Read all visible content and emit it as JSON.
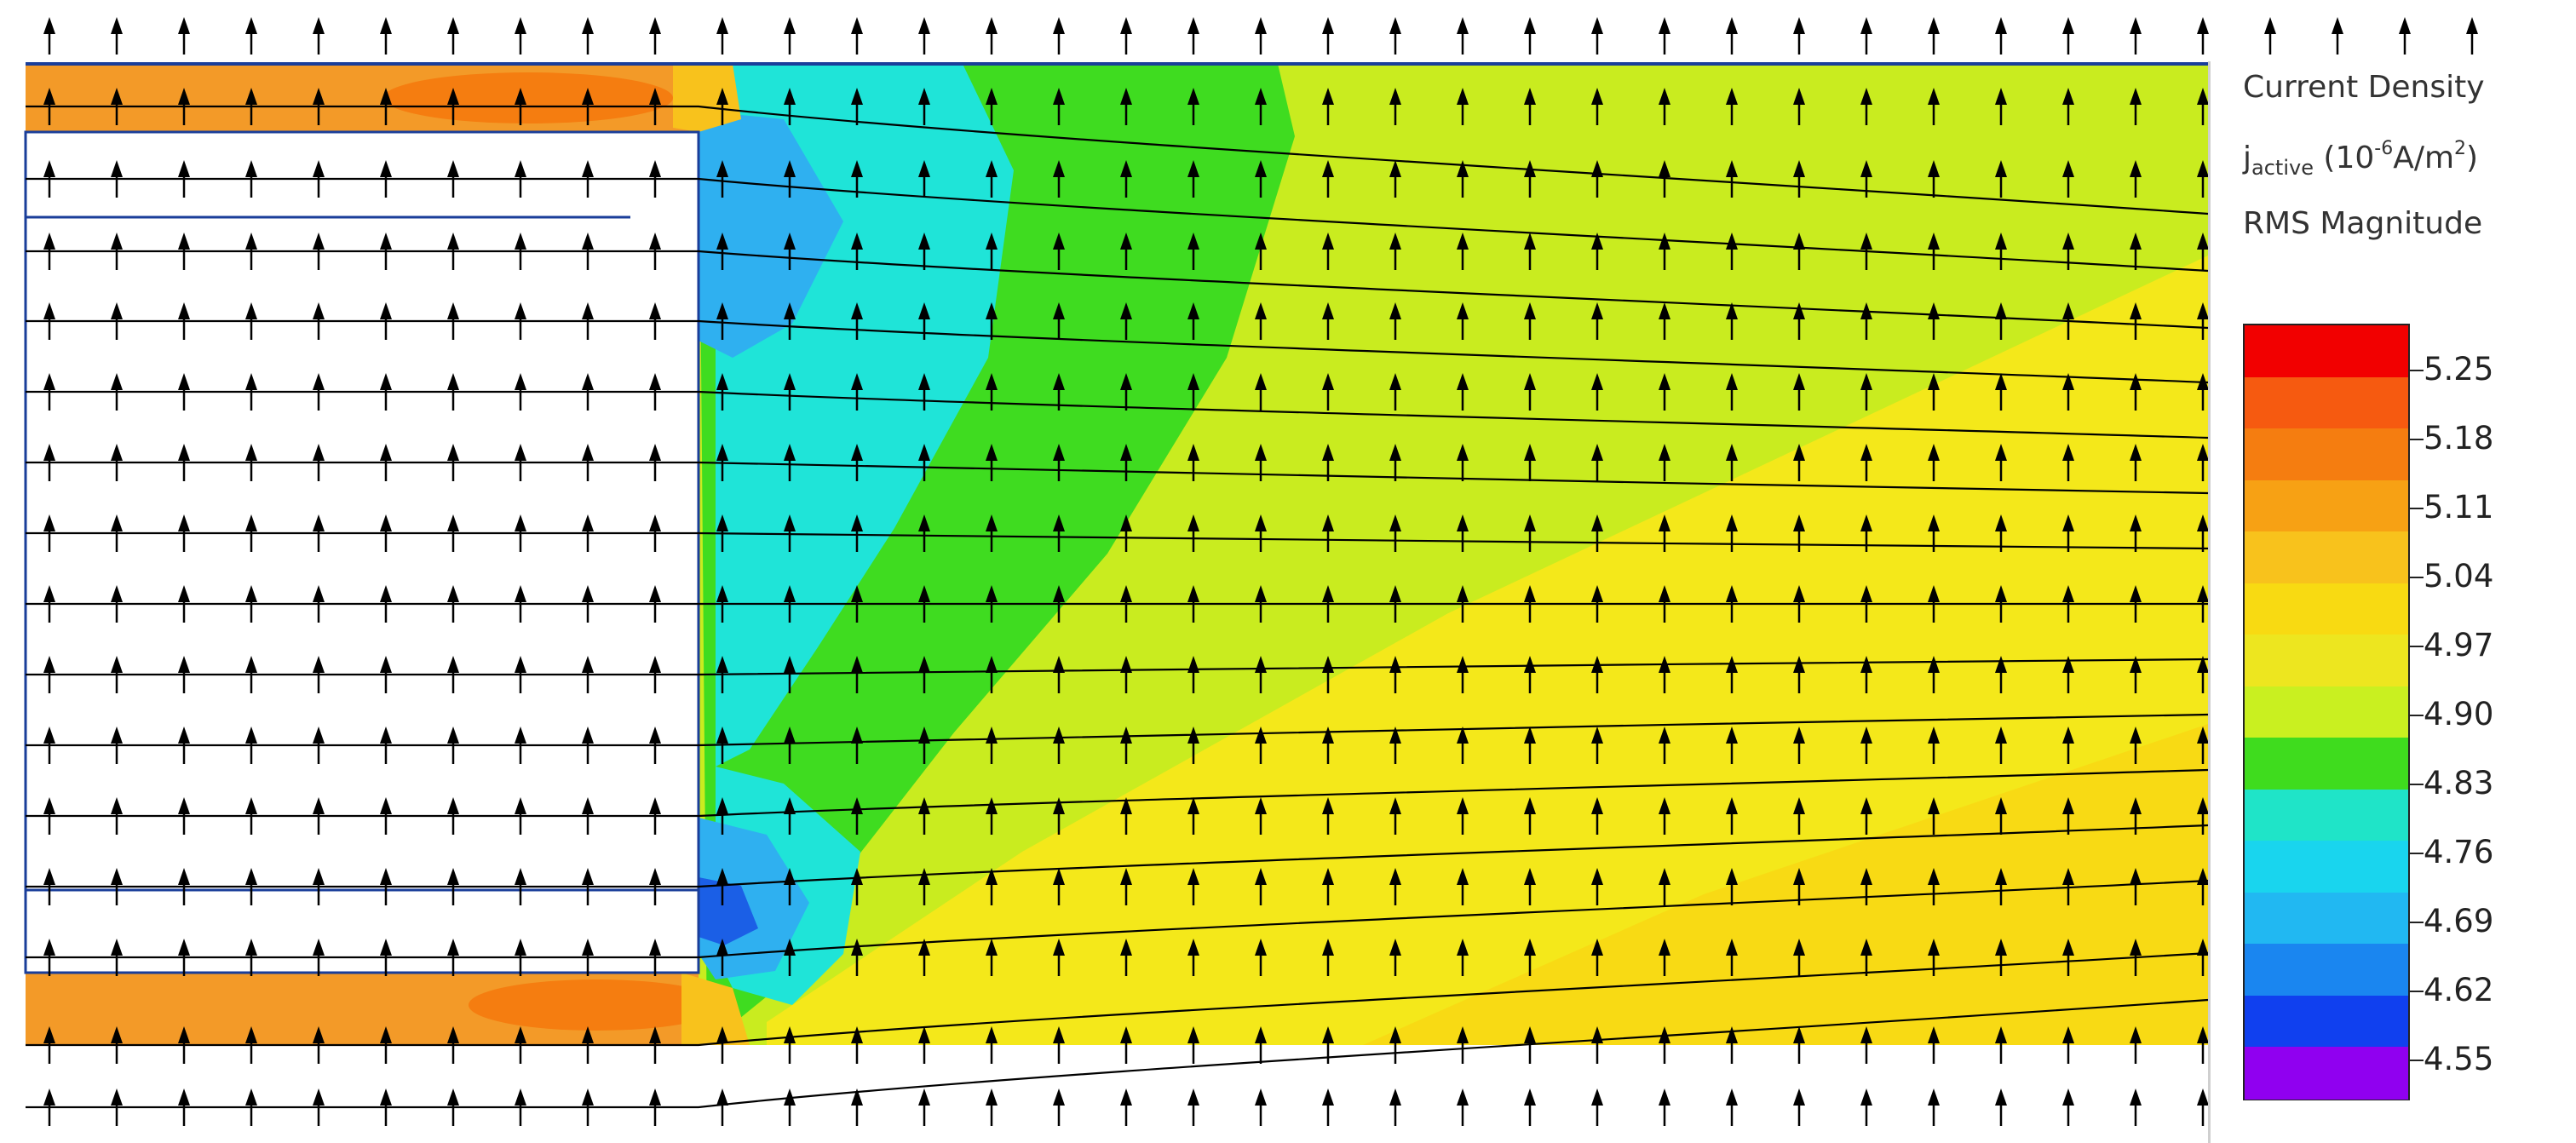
{
  "legend": {
    "title": "Current Density",
    "quantity_symbol": "j",
    "quantity_sub": "active",
    "unit_open": " (10",
    "unit_exp": "-6",
    "unit_mid": "A/m",
    "unit_sq": "2",
    "unit_close": ")",
    "measure": "RMS Magnitude",
    "tick_values": [
      "5.25",
      "5.18",
      "5.11",
      "5.04",
      "4.97",
      "4.90",
      "4.83",
      "4.76",
      "4.69",
      "4.62",
      "4.55"
    ],
    "scale_colors": [
      "#f20000",
      "#f65a10",
      "#f57d10",
      "#f7a114",
      "#f8c21c",
      "#f8da12",
      "#ede61f",
      "#c9f020",
      "#3fdc1e",
      "#1fe4c8",
      "#19d5ee",
      "#21b8f2",
      "#1a86f0",
      "#1040ef",
      "#9000f0"
    ]
  },
  "colors": {
    "orange": "#f39a28",
    "cyan": "#22e3e8",
    "deep_blue": "#1b5fe6",
    "green": "#3edd22",
    "yellow_green": "#c8ec1e",
    "yellow": "#f4ea18",
    "arrow": "#000000",
    "edge_line": "#1a3e9a"
  }
}
